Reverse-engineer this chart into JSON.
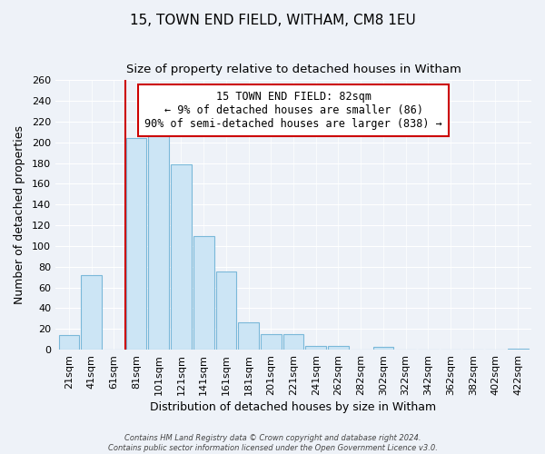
{
  "title": "15, TOWN END FIELD, WITHAM, CM8 1EU",
  "subtitle": "Size of property relative to detached houses in Witham",
  "xlabel": "Distribution of detached houses by size in Witham",
  "ylabel": "Number of detached properties",
  "bin_labels": [
    "21sqm",
    "41sqm",
    "61sqm",
    "81sqm",
    "101sqm",
    "121sqm",
    "141sqm",
    "161sqm",
    "181sqm",
    "201sqm",
    "221sqm",
    "241sqm",
    "262sqm",
    "282sqm",
    "302sqm",
    "322sqm",
    "342sqm",
    "362sqm",
    "382sqm",
    "402sqm",
    "422sqm"
  ],
  "bar_values": [
    14,
    72,
    0,
    204,
    210,
    179,
    110,
    75,
    26,
    15,
    15,
    4,
    4,
    0,
    3,
    0,
    0,
    0,
    0,
    0,
    1
  ],
  "bar_color": "#cce5f5",
  "bar_edge_color": "#7ab8d9",
  "highlight_color": "#cc0000",
  "annotation_title": "15 TOWN END FIELD: 82sqm",
  "annotation_line1": "← 9% of detached houses are smaller (86)",
  "annotation_line2": "90% of semi-detached houses are larger (838) →",
  "annotation_box_color": "#ffffff",
  "annotation_box_edge": "#cc0000",
  "ylim": [
    0,
    260
  ],
  "yticks": [
    0,
    20,
    40,
    60,
    80,
    100,
    120,
    140,
    160,
    180,
    200,
    220,
    240,
    260
  ],
  "footer1": "Contains HM Land Registry data © Crown copyright and database right 2024.",
  "footer2": "Contains public sector information licensed under the Open Government Licence v3.0.",
  "background_color": "#eef2f8",
  "plot_bg_color": "#eef2f8",
  "grid_color": "#ffffff",
  "title_fontsize": 11,
  "subtitle_fontsize": 9.5,
  "axis_label_fontsize": 9,
  "tick_fontsize": 8,
  "annotation_fontsize": 8.5,
  "footer_fontsize": 6
}
